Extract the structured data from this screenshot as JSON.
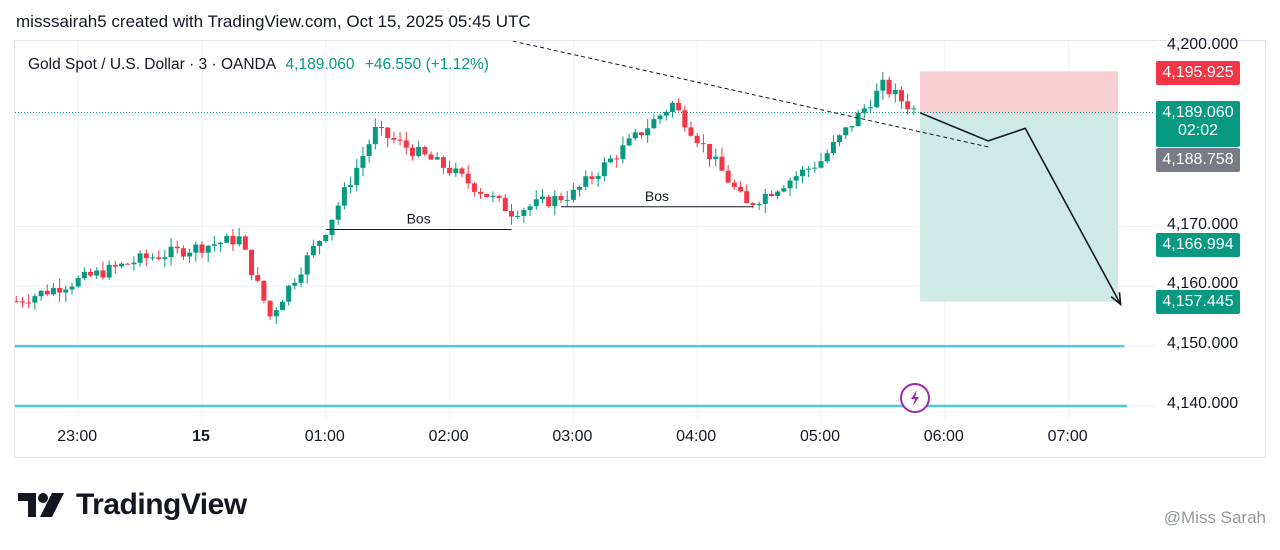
{
  "header": {
    "attribution": "misssairah5 created with TradingView.com, Oct 15, 2025 05:45 UTC"
  },
  "legend": {
    "symbol": "Gold Spot / U.S. Dollar · 3 · OANDA",
    "last": "4,189.060",
    "change": "+46.550 (+1.12%)"
  },
  "colors": {
    "up": "#089981",
    "down": "#f23645",
    "level_line": "#4dc9d9",
    "stop_zone": "#f7cfd3",
    "target_zone": "#cfeae4"
  },
  "brand": {
    "name": "TradingView"
  },
  "watermark": {
    "text": "@Miss Sarah"
  },
  "price_tags": {
    "stop": "4,195.925",
    "last": "4,189.060",
    "countdown": "02:02",
    "entry": "4,188.758",
    "mid_target": "4,166.994",
    "target": "4,157.445"
  },
  "annotations": {
    "bos_1": "Bos",
    "bos_2": "Bos"
  },
  "chart_data": {
    "type": "candlestick",
    "symbol": "XAUUSD",
    "interval": "3",
    "y_axis": {
      "ticks": [
        4200,
        4170,
        4160,
        4150,
        4140
      ],
      "tick_labels": [
        "4,200.000",
        "4,170.000",
        "4,160.000",
        "4,150.000",
        "4,140.000"
      ],
      "range": [
        4138,
        4203
      ]
    },
    "x_axis": {
      "tick_labels": [
        "23:00",
        "15",
        "01:00",
        "02:00",
        "03:00",
        "04:00",
        "05:00",
        "06:00",
        "07:00"
      ],
      "tick_times_hours": [
        -1,
        0,
        1,
        2,
        3,
        4,
        5,
        6,
        7
      ]
    },
    "horizontal_levels": [
      4150.0,
      4140.0
    ],
    "bos_levels": [
      {
        "label": "Bos",
        "price": 4169.5,
        "from": 1.0,
        "to": 2.5
      },
      {
        "label": "Bos",
        "price": 4173.3,
        "from": 2.9,
        "to": 4.45
      }
    ],
    "trendline": {
      "from": {
        "t": 2.4,
        "p": 4201.5
      },
      "to": {
        "t": 6.35,
        "p": 4183.3
      }
    },
    "position": {
      "type": "short",
      "entry": 4188.758,
      "stop": 4195.925,
      "target": 4157.445,
      "start": 5.8,
      "end": 7.4
    },
    "projection": [
      {
        "t": 5.8,
        "p": 4189.0
      },
      {
        "t": 6.35,
        "p": 4184.3
      },
      {
        "t": 6.65,
        "p": 4186.4
      },
      {
        "t": 7.42,
        "p": 4157.0
      }
    ],
    "candles_close_sample": [
      {
        "t": -1.5,
        "c": 4157.5
      },
      {
        "t": -0.5,
        "c": 4164.5
      },
      {
        "t": 0.3,
        "c": 4168.0
      },
      {
        "t": 0.55,
        "c": 4155.0
      },
      {
        "t": 1.0,
        "c": 4169.5
      },
      {
        "t": 1.4,
        "c": 4186.0
      },
      {
        "t": 2.0,
        "c": 4179.5
      },
      {
        "t": 2.5,
        "c": 4172.5
      },
      {
        "t": 3.0,
        "c": 4175.5
      },
      {
        "t": 3.8,
        "c": 4190.5
      },
      {
        "t": 4.4,
        "c": 4173.5
      },
      {
        "t": 5.0,
        "c": 4181.0
      },
      {
        "t": 5.5,
        "c": 4193.5
      },
      {
        "t": 5.78,
        "c": 4189.06
      }
    ]
  }
}
